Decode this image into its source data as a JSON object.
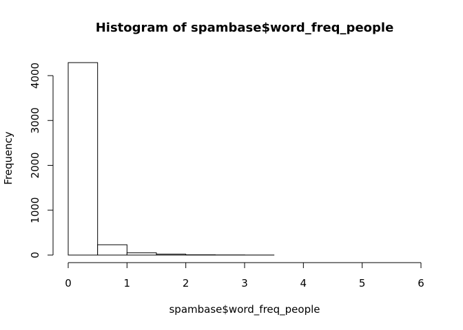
{
  "chart_data": {
    "type": "bar",
    "title": "Histogram of spambase$word_freq_people",
    "xlabel": "spambase$word_freq_people",
    "ylabel": "Frequency",
    "bin_edges": [
      0,
      0.5,
      1,
      1.5,
      2,
      2.5,
      3,
      3.5,
      4,
      4.5,
      5,
      5.5,
      6
    ],
    "values": [
      4290,
      230,
      50,
      20,
      6,
      3,
      1,
      0,
      0,
      0,
      0,
      0
    ],
    "xlim": [
      0,
      6
    ],
    "ylim": [
      0,
      4300
    ],
    "x_ticks": [
      "0",
      "1",
      "2",
      "3",
      "4",
      "5",
      "6"
    ],
    "y_ticks": [
      "0",
      "1000",
      "2000",
      "3000",
      "4000"
    ],
    "grid": false,
    "bar_fill": "#ffffff",
    "bar_stroke": "#000000"
  }
}
